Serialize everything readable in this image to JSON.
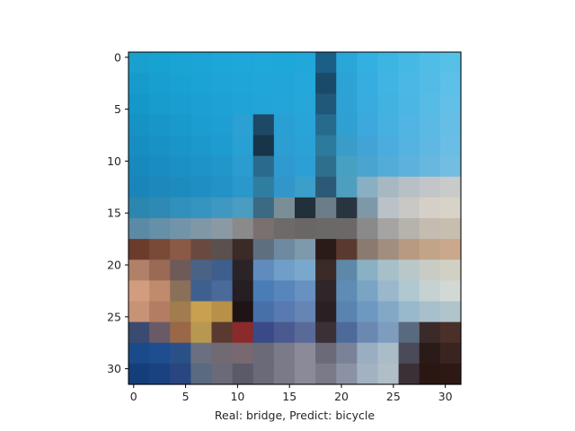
{
  "chart_data": {
    "type": "heatmap",
    "image_shape": [
      32,
      32
    ],
    "description_grid_size": 16,
    "x_ticks": [
      0,
      5,
      10,
      15,
      20,
      25,
      30
    ],
    "y_ticks": [
      0,
      5,
      10,
      15,
      20,
      25,
      30
    ],
    "xlabel": "Real: bridge, Predict: bicycle",
    "xlim": [
      -0.5,
      31.5
    ],
    "ylim": [
      31.5,
      -0.5
    ],
    "cmap_note": "RGB image, 16x16 coarse approximation of 32x32 pixels",
    "pixels": [
      [
        "#19a0cf",
        "#17a2d2",
        "#19a4d4",
        "#1ca4d6",
        "#1da6d8",
        "#1fa6da",
        "#1fa8da",
        "#1ea8da",
        "#22a7da",
        "#1c5f86",
        "#2aa6d8",
        "#33b0e0",
        "#3db5e2",
        "#45b9e4",
        "#50bde6",
        "#57c0e7"
      ],
      [
        "#169bcc",
        "#189ed0",
        "#1aa1d3",
        "#1ca3d5",
        "#1ea4d7",
        "#20a5d9",
        "#21a6d9",
        "#22a6da",
        "#24a7da",
        "#1a4a6a",
        "#2ca3d4",
        "#36ade0",
        "#40b4e2",
        "#49b8e4",
        "#52bce6",
        "#5cc0e8"
      ],
      [
        "#1697c9",
        "#189bcd",
        "#1a9ed1",
        "#1ca0d3",
        "#1ea2d5",
        "#20a3d7",
        "#22a4d8",
        "#24a5d9",
        "#26a6d9",
        "#1f5878",
        "#2ea2d3",
        "#3aabde",
        "#42b2e1",
        "#4cb6e3",
        "#56bbe5",
        "#62bfe7"
      ],
      [
        "#1692c5",
        "#1896ca",
        "#1a99cd",
        "#1c9cd0",
        "#1e9ed2",
        "#2aa0d3",
        "#1d4966",
        "#2a9fd4",
        "#28a4d8",
        "#266a8c",
        "#309fd1",
        "#3ca8dc",
        "#46b0e0",
        "#50b5e2",
        "#5abae4",
        "#66bee6"
      ],
      [
        "#168ec1",
        "#1891c5",
        "#1a95ca",
        "#1c98cd",
        "#1e9bd0",
        "#28a0d2",
        "#173448",
        "#2c9ed2",
        "#2aa2d6",
        "#2c7a9c",
        "#3a9cc8",
        "#42a4d6",
        "#4aaddd",
        "#54b3e0",
        "#5fb8e2",
        "#6abde4"
      ],
      [
        "#1789bd",
        "#198cc1",
        "#1b90c5",
        "#1d93c8",
        "#2096cb",
        "#2a9ccf",
        "#2a6a8c",
        "#2e9ad0",
        "#2c9fd4",
        "#2f6f8e",
        "#46a0c2",
        "#4aa4d0",
        "#52acd8",
        "#5cb2dc",
        "#67b7df",
        "#72bde2"
      ],
      [
        "#1a85b8",
        "#1c88bc",
        "#1e8bbf",
        "#218ec3",
        "#2392c6",
        "#2b98cb",
        "#2f7da0",
        "#3296cb",
        "#3a9fc9",
        "#2b5976",
        "#4e9ec0",
        "#88b0c2",
        "#a8b8c2",
        "#b8c0c6",
        "#c2c6c8",
        "#c8cbca"
      ],
      [
        "#2b86b0",
        "#2e8ab4",
        "#3290bc",
        "#3694c0",
        "#3e98c2",
        "#4a9cc0",
        "#3a6a84",
        "#7a8e98",
        "#22303c",
        "#6a7d88",
        "#283440",
        "#7f98a8",
        "#b8c2c8",
        "#cac8c4",
        "#d4d0c8",
        "#d8d2c8"
      ],
      [
        "#5a8aa6",
        "#6590a8",
        "#7294aa",
        "#7e98a8",
        "#8a9aa4",
        "#8a8a8a",
        "#7a7070",
        "#6f6a6a",
        "#6a6666",
        "#6b6868",
        "#6c6868",
        "#8a8a8a",
        "#a6a4a2",
        "#b6b2ac",
        "#c4bcb0",
        "#c8beb0"
      ],
      [
        "#6b3b2c",
        "#7a4a38",
        "#8a5a46",
        "#6a4a40",
        "#5a5050",
        "#3a2a28",
        "#5e6f80",
        "#6e8aa0",
        "#7e98ac",
        "#2a1a18",
        "#5a3a30",
        "#8a7a70",
        "#a28e7e",
        "#b89a82",
        "#c2a488",
        "#caa88c"
      ],
      [
        "#b08068",
        "#9a6a56",
        "#6e5a58",
        "#4a6284",
        "#3e5e8c",
        "#2a2428",
        "#5f8cbc",
        "#6f9fc8",
        "#7aa8cc",
        "#3a2a28",
        "#5e88a8",
        "#8ab0c4",
        "#a6c0c8",
        "#b8c8c8",
        "#c8ccc4",
        "#d0d0c4"
      ],
      [
        "#d49c7e",
        "#c08a6c",
        "#8a7058",
        "#3e6090",
        "#4a6a9a",
        "#261e22",
        "#4a7cb8",
        "#5886bc",
        "#6890c0",
        "#2e2628",
        "#5e8cb4",
        "#7aa4c4",
        "#9ab8cc",
        "#b0c8d0",
        "#c6d2d2",
        "#d2d8d4"
      ],
      [
        "#c89276",
        "#b47c62",
        "#a07c4e",
        "#c8a050",
        "#b89048",
        "#1e1416",
        "#4870a8",
        "#587ab0",
        "#6684b4",
        "#2a2024",
        "#5a84b0",
        "#6e98c0",
        "#82a8c8",
        "#98b8cc",
        "#a8c0cc",
        "#b0c4cc"
      ],
      [
        "#3a4a70",
        "#6a5a68",
        "#9a6846",
        "#b89850",
        "#5a3a30",
        "#8a2a2a",
        "#3a4a88",
        "#4a5a90",
        "#5a6a98",
        "#3a3036",
        "#4e6a9a",
        "#6a88b0",
        "#7e9cbe",
        "#5a6a7e",
        "#3a2a2a",
        "#4a3028"
      ],
      [
        "#1a4a8a",
        "#1e4e90",
        "#2a5088",
        "#6a7080",
        "#706a72",
        "#786870",
        "#6a6a78",
        "#7a7a88",
        "#8a8a98",
        "#6a6a78",
        "#7a8298",
        "#9aaec2",
        "#aabcc8",
        "#4a4a58",
        "#2a1a18",
        "#3a2420"
      ],
      [
        "#143e7a",
        "#1a4280",
        "#2a4680",
        "#5a6a80",
        "#6a6a78",
        "#5a5a68",
        "#6a6a78",
        "#7a7a88",
        "#8a8a98",
        "#7a7a88",
        "#8a92a4",
        "#a2b2c2",
        "#b0bec8",
        "#3a3036",
        "#2a1612",
        "#2e1814"
      ]
    ]
  }
}
